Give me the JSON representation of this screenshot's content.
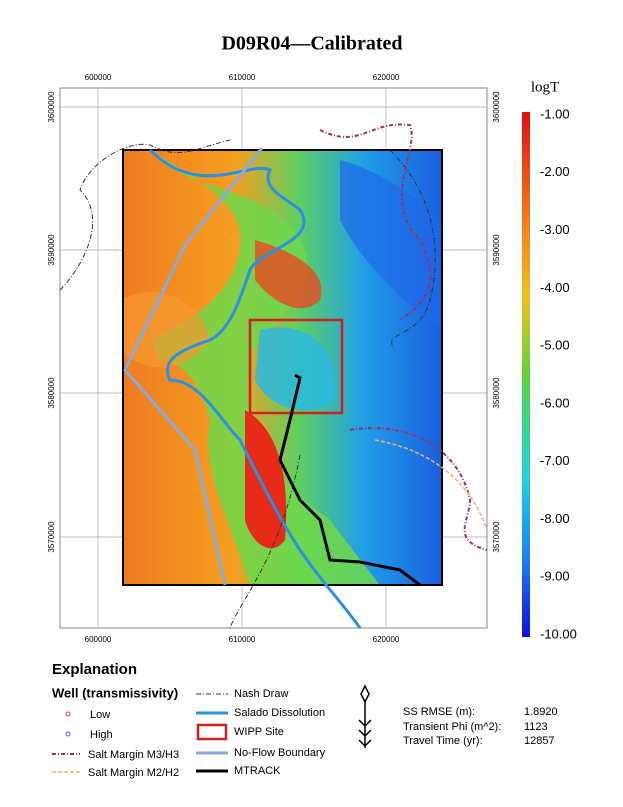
{
  "title": "D09R04—Calibrated",
  "map": {
    "x_ticks": [
      "600000",
      "610000",
      "620000"
    ],
    "y_ticks": [
      "3600000",
      "3590000",
      "3580000",
      "3570000"
    ]
  },
  "colorbar": {
    "label": "logT",
    "ticks": [
      "-1.00",
      "-2.00",
      "-3.00",
      "-4.00",
      "-5.00",
      "-6.00",
      "-7.00",
      "-8.00",
      "-9.00",
      "-10.00"
    ]
  },
  "legend": {
    "title": "Explanation",
    "subtitle": "Well (transmissivity)",
    "items": [
      "Low",
      "High",
      "Salt Margin M3/H3",
      "Salt Margin M2/H2",
      "Nash Draw",
      "Salado Dissolution",
      "WIPP Site",
      "No-Flow Boundary",
      "MTRACK"
    ]
  },
  "stats": [
    {
      "label": "SS RMSE (m):",
      "value": "1.8920"
    },
    {
      "label": "Transient Phi (m^2):",
      "value": "1123"
    },
    {
      "label": "Travel Time (yr):",
      "value": "12857"
    }
  ]
}
